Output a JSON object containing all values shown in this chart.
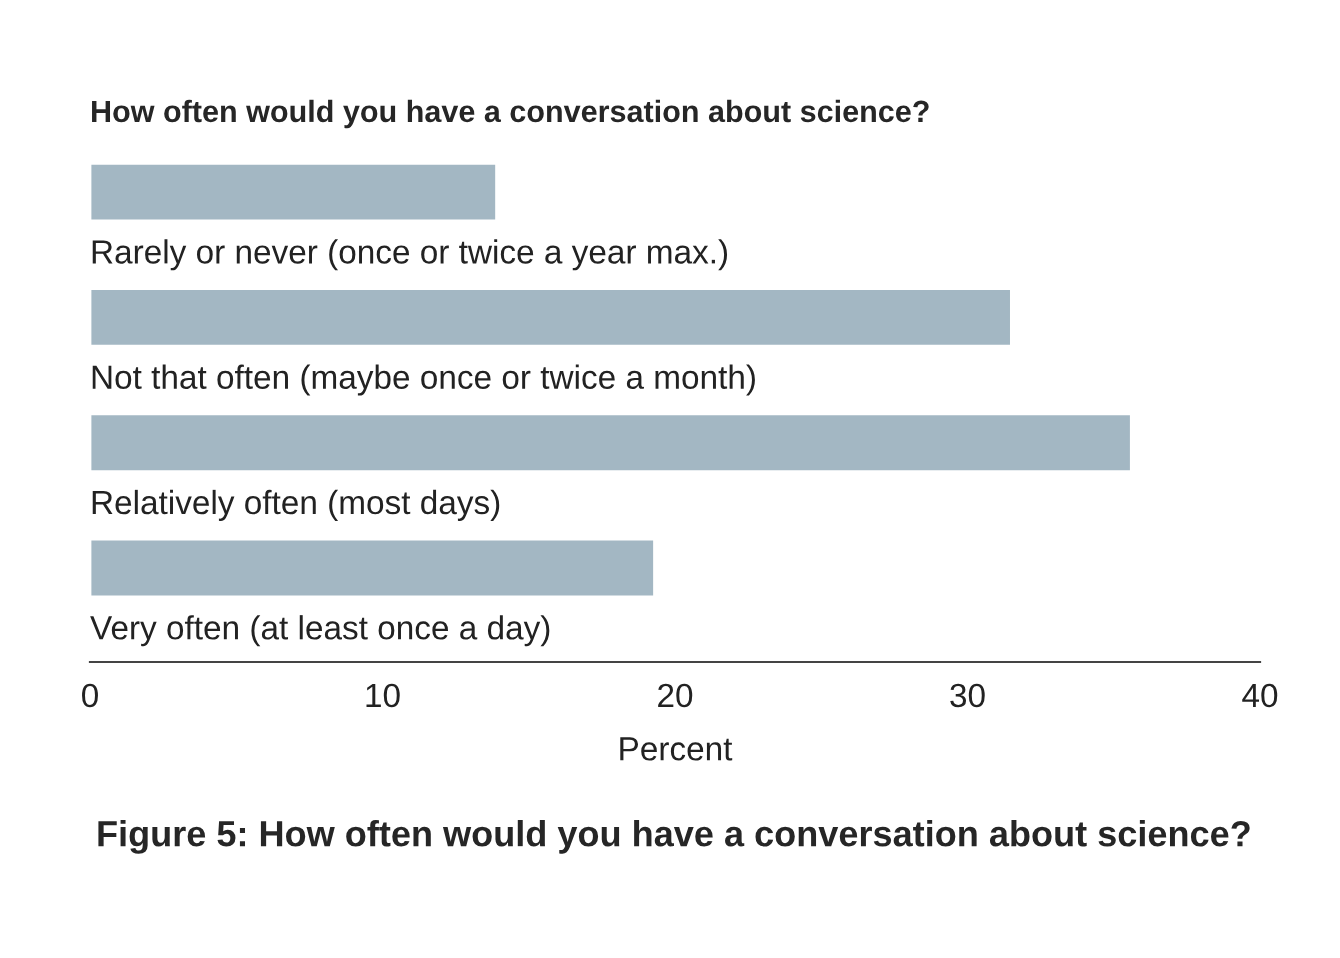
{
  "chart_data": {
    "type": "bar",
    "orientation": "horizontal",
    "title": "How often would you have a conversation about science?",
    "categories": [
      "Rarely or never (once or twice a year max.)",
      "Not that often (maybe once or twice a month)",
      "Relatively often (most days)",
      "Very often (at least once a day)"
    ],
    "values": [
      13.9,
      31.5,
      35.6,
      19.3
    ],
    "color": "#a3b7c3",
    "xlabel": "Percent",
    "xlim": [
      0,
      40
    ],
    "xticks": [
      0,
      10,
      20,
      30,
      40
    ],
    "grid": false,
    "legend": false,
    "annotations": [
      "Figure 5: How often would you have a conversation about science?"
    ]
  }
}
